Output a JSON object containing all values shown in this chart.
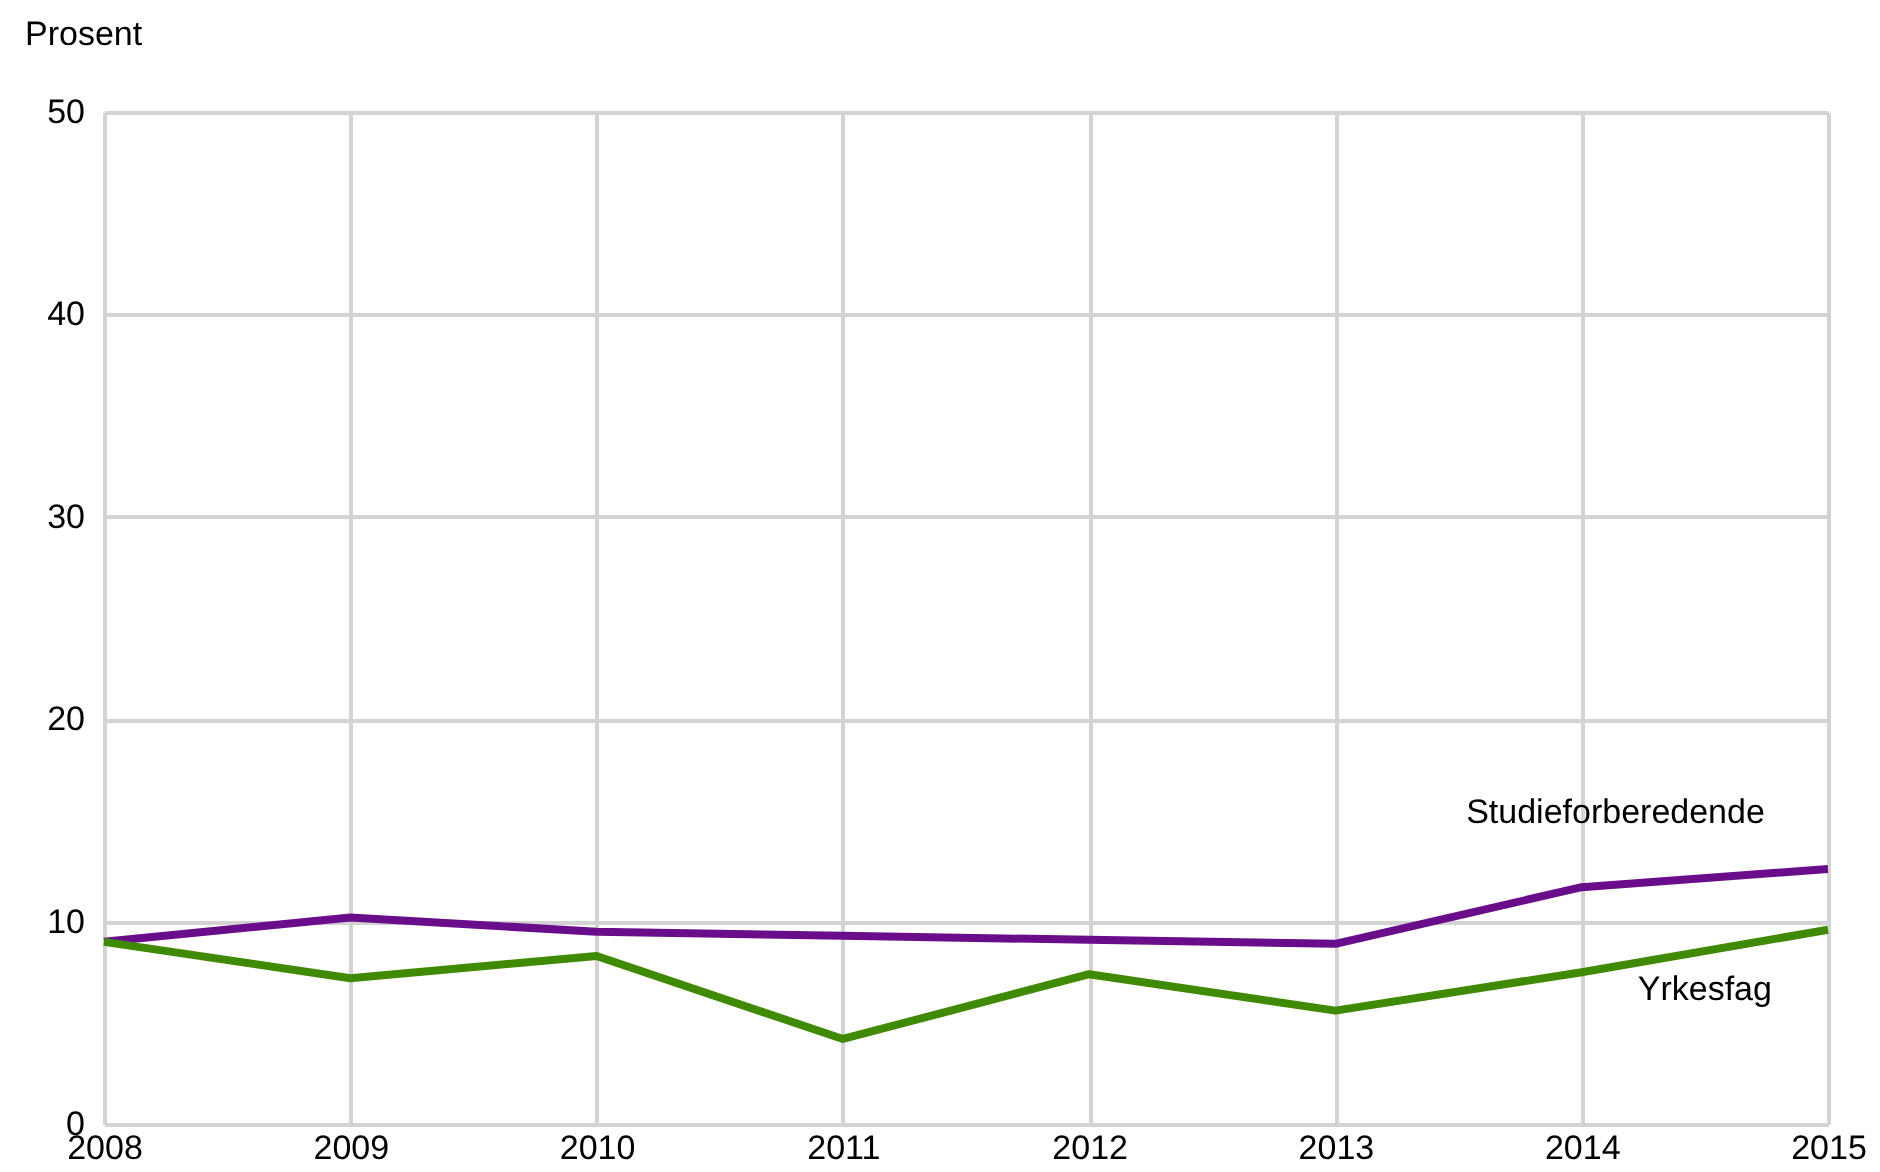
{
  "chart_data": {
    "type": "line",
    "ylabel": "Prosent",
    "x": [
      2008,
      2009,
      2010,
      2011,
      2012,
      2013,
      2014,
      2015
    ],
    "series": [
      {
        "name": "Studieforberedende",
        "color": "#6a0d8a",
        "values": [
          9.0,
          10.2,
          9.5,
          9.3,
          9.1,
          8.9,
          11.7,
          12.6
        ]
      },
      {
        "name": "Yrkesfag",
        "color": "#3f8a00",
        "values": [
          9.0,
          7.2,
          8.3,
          4.2,
          7.4,
          5.6,
          7.5,
          9.6
        ]
      }
    ],
    "xlim": [
      2008,
      2015
    ],
    "xticks": [
      2008,
      2009,
      2010,
      2011,
      2012,
      2013,
      2014,
      2015
    ],
    "ylim": [
      0,
      50
    ],
    "yticks": [
      0,
      10,
      20,
      30,
      40,
      50
    ],
    "grid": true,
    "legend": false,
    "marker": "none",
    "line_style": "solid"
  }
}
